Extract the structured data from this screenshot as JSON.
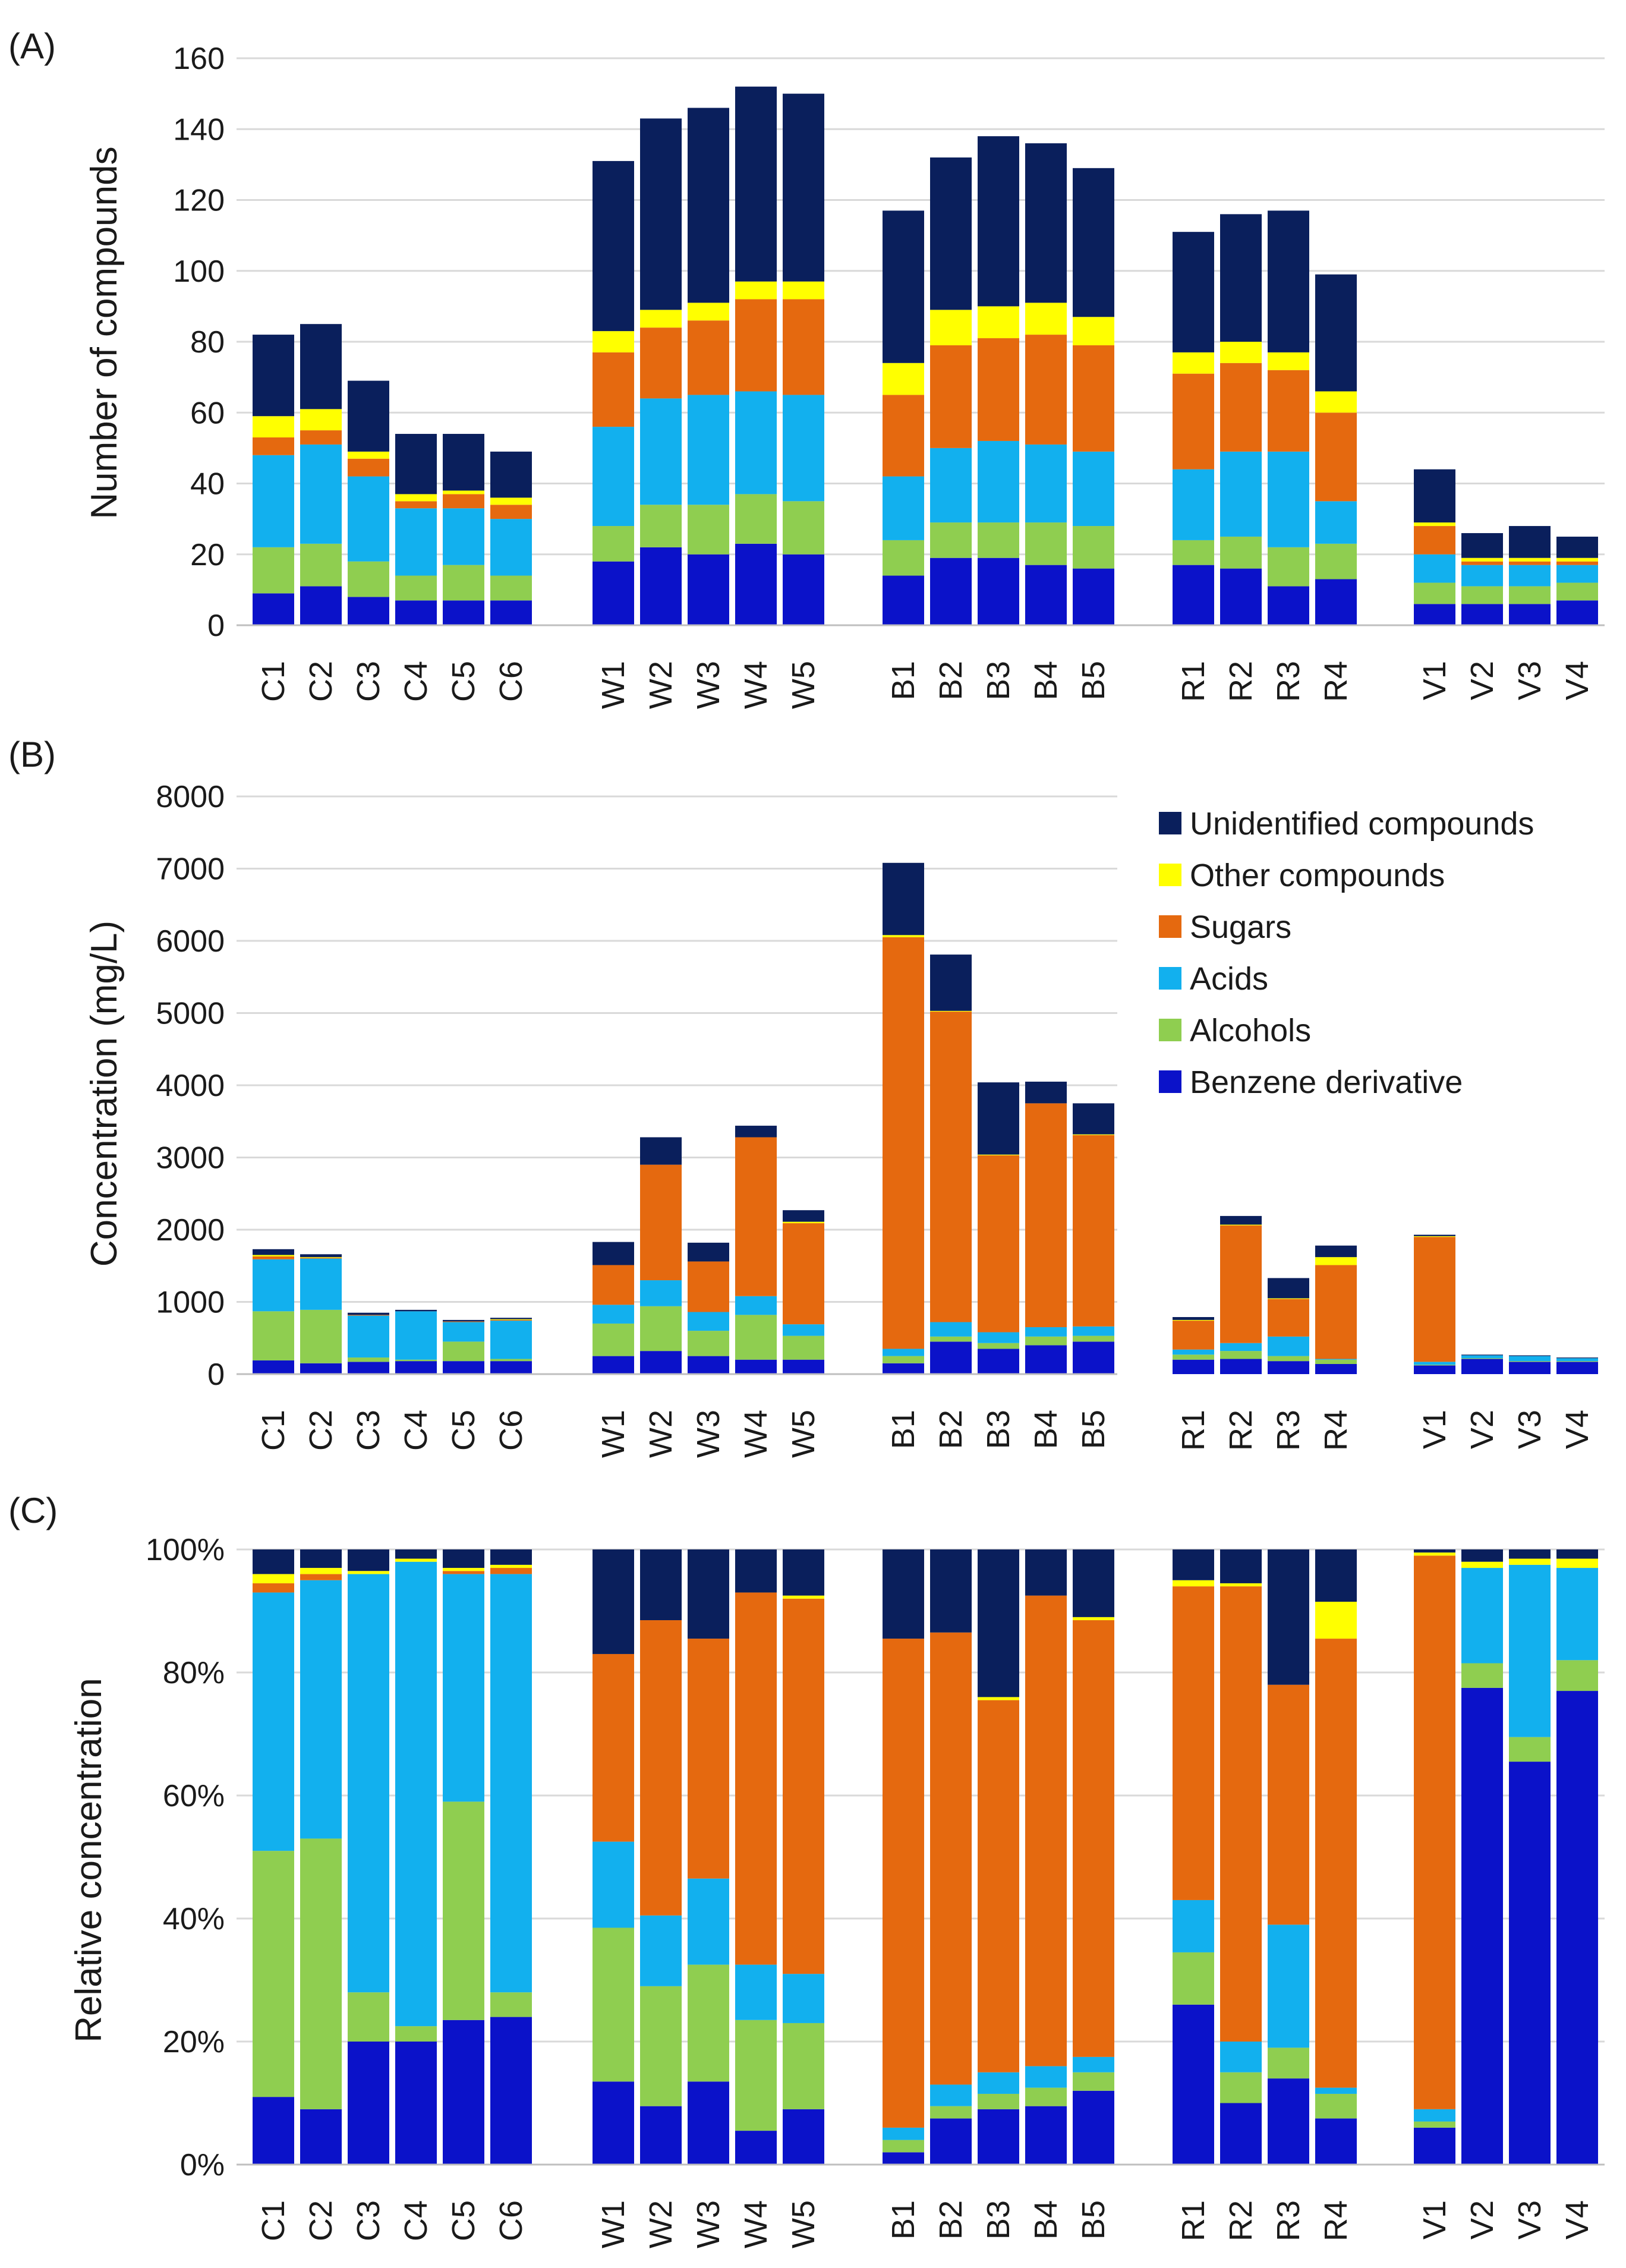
{
  "series_names": [
    "Benzene derivative",
    "Alcohols",
    "Acids",
    "Sugars",
    "Other compounds",
    "Unidentified compounds"
  ],
  "series_colors": {
    "Benzene derivative": "#0b12c9",
    "Alcohols": "#8fce50",
    "Acids": "#12b0ee",
    "Sugars": "#e5690f",
    "Other compounds": "#ffff00",
    "Unidentified compounds": "#0a1f5c"
  },
  "legend": {
    "placement": "top-right of panel B",
    "entries": [
      "Unidentified compounds",
      "Other compounds",
      "Sugars",
      "Acids",
      "Alcohols",
      "Benzene derivative"
    ]
  },
  "chart_data": [
    {
      "panel": "(A)",
      "type": "bar",
      "stacked": true,
      "ylabel": "Number of compounds",
      "ylim": [
        0,
        160
      ],
      "yticks": [
        0,
        20,
        40,
        60,
        80,
        100,
        120,
        140,
        160
      ],
      "ytick_labels": [
        "0",
        "20",
        "40",
        "60",
        "80",
        "100",
        "120",
        "140",
        "160"
      ],
      "grid": true,
      "categories": [
        "C1",
        "C2",
        "C3",
        "C4",
        "C5",
        "C6",
        "W1",
        "W2",
        "W3",
        "W4",
        "W5",
        "B1",
        "B2",
        "B3",
        "B4",
        "B5",
        "R1",
        "R2",
        "R3",
        "R4",
        "V1",
        "V2",
        "V3",
        "V4"
      ],
      "series": [
        {
          "name": "Benzene derivative",
          "values": [
            9,
            11,
            8,
            7,
            7,
            7,
            18,
            22,
            20,
            23,
            20,
            14,
            19,
            19,
            17,
            16,
            17,
            16,
            11,
            13,
            6,
            6,
            6,
            7
          ]
        },
        {
          "name": "Alcohols",
          "values": [
            13,
            12,
            10,
            7,
            10,
            7,
            10,
            12,
            14,
            14,
            15,
            10,
            10,
            10,
            12,
            12,
            7,
            9,
            11,
            10,
            6,
            5,
            5,
            5
          ]
        },
        {
          "name": "Acids",
          "values": [
            26,
            28,
            24,
            19,
            16,
            16,
            28,
            30,
            31,
            29,
            30,
            18,
            21,
            23,
            22,
            21,
            20,
            24,
            27,
            12,
            8,
            6,
            6,
            5
          ]
        },
        {
          "name": "Sugars",
          "values": [
            5,
            4,
            5,
            2,
            4,
            4,
            21,
            20,
            21,
            26,
            27,
            23,
            29,
            29,
            31,
            30,
            27,
            25,
            23,
            25,
            8,
            1,
            1,
            1
          ]
        },
        {
          "name": "Other compounds",
          "values": [
            6,
            6,
            2,
            2,
            1,
            2,
            6,
            5,
            5,
            5,
            5,
            9,
            10,
            9,
            9,
            8,
            6,
            6,
            5,
            6,
            1,
            1,
            1,
            1
          ]
        },
        {
          "name": "Unidentified compounds",
          "values": [
            23,
            24,
            20,
            17,
            16,
            13,
            48,
            54,
            55,
            55,
            53,
            43,
            43,
            48,
            45,
            42,
            34,
            36,
            40,
            33,
            15,
            7,
            9,
            6
          ]
        }
      ]
    },
    {
      "panel": "(B)",
      "type": "bar",
      "stacked": true,
      "ylabel": "Concentration (mg/L)",
      "ylim": [
        0,
        8000
      ],
      "yticks": [
        0,
        1000,
        2000,
        3000,
        4000,
        5000,
        6000,
        7000,
        8000
      ],
      "ytick_labels": [
        "0",
        "1000",
        "2000",
        "3000",
        "4000",
        "5000",
        "6000",
        "7000",
        "8000"
      ],
      "grid": true,
      "categories": [
        "C1",
        "C2",
        "C3",
        "C4",
        "C5",
        "C6",
        "W1",
        "W2",
        "W3",
        "W4",
        "W5",
        "B1",
        "B2",
        "B3",
        "B4",
        "B5",
        "R1",
        "R2",
        "R3",
        "R4",
        "V1",
        "V2",
        "V3",
        "V4"
      ],
      "series": [
        {
          "name": "Benzene derivative",
          "values": [
            190,
            150,
            170,
            180,
            180,
            180,
            250,
            320,
            250,
            200,
            200,
            150,
            450,
            350,
            400,
            450,
            200,
            210,
            180,
            140,
            120,
            210,
            170,
            170
          ]
        },
        {
          "name": "Alcohols",
          "values": [
            680,
            740,
            60,
            20,
            270,
            30,
            450,
            620,
            350,
            620,
            330,
            100,
            70,
            80,
            120,
            80,
            70,
            110,
            70,
            60,
            10,
            10,
            10,
            10
          ]
        },
        {
          "name": "Acids",
          "values": [
            720,
            710,
            580,
            670,
            270,
            530,
            260,
            360,
            260,
            260,
            160,
            100,
            200,
            150,
            130,
            130,
            70,
            110,
            270,
            10,
            40,
            40,
            70,
            40
          ]
        },
        {
          "name": "Sugars",
          "values": [
            40,
            10,
            10,
            0,
            10,
            10,
            550,
            1600,
            700,
            2200,
            1400,
            5700,
            4300,
            2450,
            3100,
            2650,
            400,
            1630,
            520,
            1300,
            1730,
            0,
            0,
            0
          ]
        },
        {
          "name": "Other compounds",
          "values": [
            20,
            10,
            0,
            0,
            0,
            10,
            0,
            0,
            0,
            0,
            20,
            30,
            10,
            10,
            0,
            10,
            10,
            10,
            10,
            110,
            10,
            0,
            0,
            0
          ]
        },
        {
          "name": "Unidentified compounds",
          "values": [
            80,
            40,
            30,
            20,
            20,
            20,
            320,
            380,
            260,
            160,
            160,
            1000,
            780,
            1000,
            300,
            430,
            40,
            120,
            280,
            160,
            20,
            10,
            10,
            10
          ]
        }
      ]
    },
    {
      "panel": "(C)",
      "type": "bar",
      "stacked": true,
      "ylabel": "Relative concentration",
      "ylim": [
        0,
        100
      ],
      "yticks": [
        0,
        20,
        40,
        60,
        80,
        100
      ],
      "ytick_labels": [
        "0%",
        "20%",
        "40%",
        "60%",
        "80%",
        "100%"
      ],
      "grid": true,
      "categories": [
        "C1",
        "C2",
        "C3",
        "C4",
        "C5",
        "C6",
        "W1",
        "W2",
        "W3",
        "W4",
        "W5",
        "B1",
        "B2",
        "B3",
        "B4",
        "B5",
        "R1",
        "R2",
        "R3",
        "R4",
        "V1",
        "V2",
        "V3",
        "V4"
      ],
      "series": [
        {
          "name": "Benzene derivative",
          "values": [
            11,
            9,
            20,
            20,
            23.5,
            24,
            13.5,
            9.5,
            13.5,
            5.5,
            9,
            2,
            7.5,
            9,
            9.5,
            12,
            26,
            10,
            14,
            7.5,
            6,
            77.5,
            65.5,
            77
          ]
        },
        {
          "name": "Alcohols",
          "values": [
            40,
            44,
            8,
            2.5,
            35.5,
            4,
            25,
            19.5,
            19,
            18,
            14,
            2,
            2,
            2.5,
            3,
            3,
            8.5,
            5,
            5,
            4,
            1,
            4,
            4,
            5
          ]
        },
        {
          "name": "Acids",
          "values": [
            42,
            42,
            68,
            75.5,
            37,
            68,
            14,
            11.5,
            14,
            9,
            8,
            2,
            3.5,
            3.5,
            3.5,
            2.5,
            8.5,
            5,
            20,
            1,
            2,
            15.5,
            28,
            15
          ]
        },
        {
          "name": "Sugars",
          "values": [
            1.5,
            1,
            0,
            0,
            0.5,
            1,
            30.5,
            48,
            39,
            60.5,
            61,
            79.5,
            73.5,
            60.5,
            76.5,
            71,
            51,
            74,
            39,
            73,
            90,
            0,
            0,
            0
          ]
        },
        {
          "name": "Other compounds",
          "values": [
            1.5,
            1,
            0.5,
            0.5,
            0.5,
            0.5,
            0,
            0,
            0,
            0,
            0.5,
            0,
            0,
            0.5,
            0,
            0.5,
            1,
            0.5,
            0,
            6,
            0.5,
            1,
            1,
            1.5
          ]
        },
        {
          "name": "Unidentified compounds",
          "values": [
            4,
            3,
            3.5,
            1.5,
            3,
            2.5,
            17,
            11.5,
            14.5,
            7,
            7.5,
            14.5,
            13.5,
            24,
            7.5,
            11,
            5,
            5.5,
            22,
            8.5,
            0.5,
            2,
            1.5,
            1.5
          ]
        }
      ]
    }
  ]
}
